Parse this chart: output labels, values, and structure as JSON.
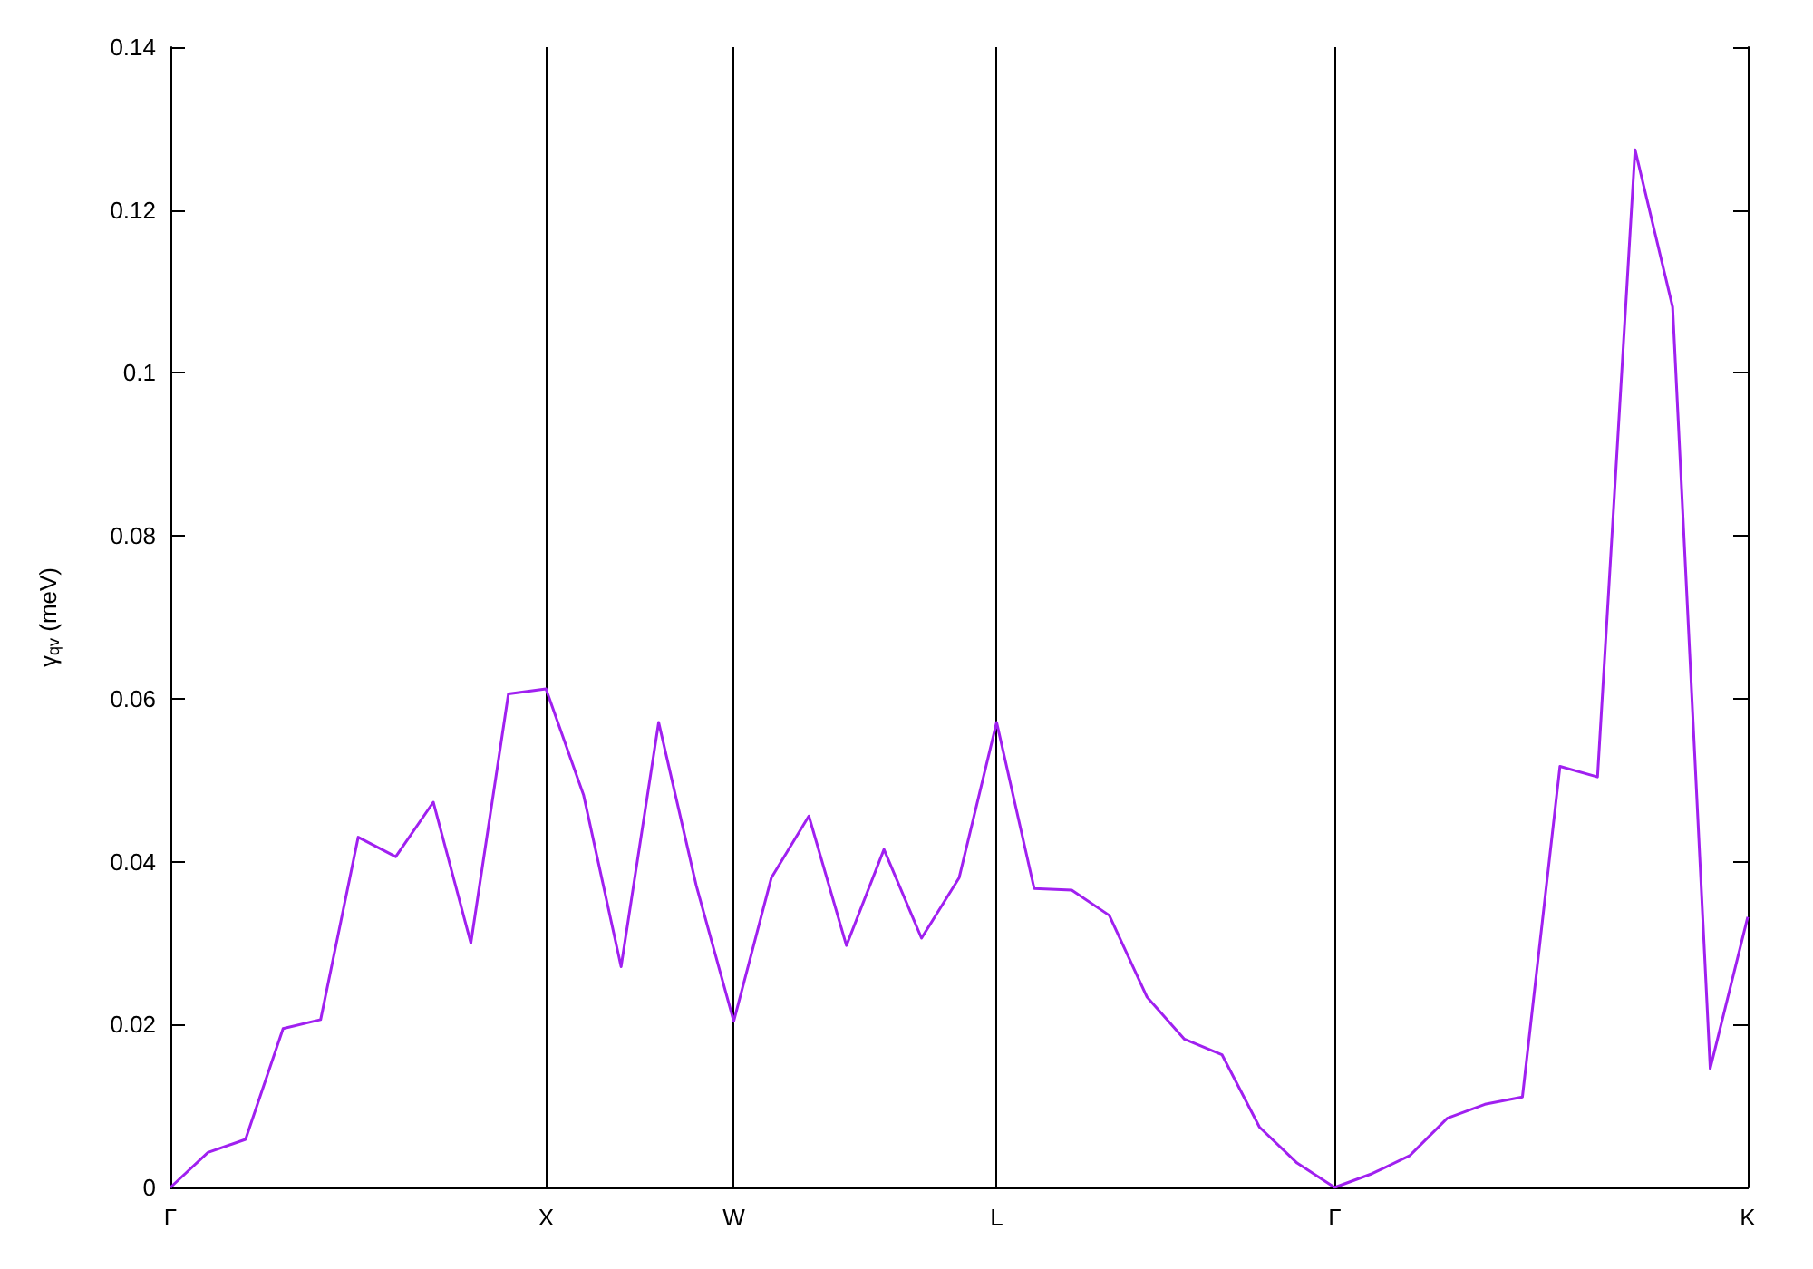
{
  "chart_data": {
    "type": "line",
    "ylabel": "γ$_{qv}$ (meV)",
    "categories": [
      "Γ",
      null,
      null,
      null,
      null,
      null,
      null,
      null,
      null,
      null,
      "X",
      null,
      null,
      null,
      null,
      "W",
      null,
      null,
      null,
      null,
      null,
      null,
      "L",
      null,
      null,
      null,
      null,
      null,
      null,
      null,
      null,
      "Γ",
      null,
      null,
      null,
      null,
      null,
      null,
      null,
      null,
      null,
      null,
      "K"
    ],
    "series": [
      {
        "color": "#a020f0",
        "values": [
          0,
          0.0043,
          0.0059,
          0.0195,
          0.0206,
          0.043,
          0.0406,
          0.0473,
          0.03,
          0.0606,
          0.0612,
          0.0482,
          0.0271,
          0.0571,
          0.0371,
          0.0204,
          0.038,
          0.0456,
          0.0297,
          0.0415,
          0.0306,
          0.038,
          0.0571,
          0.0367,
          0.0365,
          0.0334,
          0.0234,
          0.0182,
          0.0163,
          0.0074,
          0.003,
          0,
          0.0017,
          0.0039,
          0.0085,
          0.0102,
          0.0111,
          0.0517,
          0.0504,
          0.1274,
          0.1081,
          0.0146,
          0.0332
        ]
      }
    ],
    "ylim": [
      0,
      0.14
    ],
    "yticks": [
      0,
      0.02,
      0.04,
      0.06,
      0.08,
      0.1,
      0.12,
      0.14
    ],
    "grid": "x",
    "marker": "none",
    "line_style": "solid"
  }
}
